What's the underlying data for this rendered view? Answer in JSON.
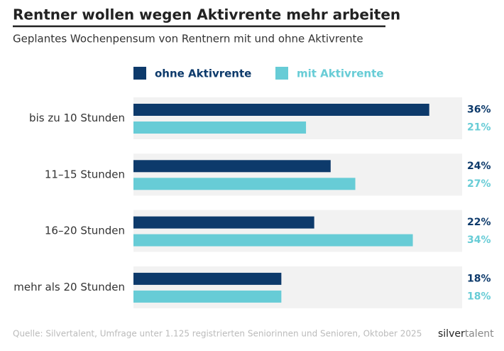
{
  "chart_data": {
    "type": "hbar",
    "title": "Rentner wollen wegen Aktivrente mehr arbeiten",
    "subtitle": "Geplantes Wochenpensum von Rentnern mit und ohne Aktivrente",
    "categories": [
      "bis zu 10 Stunden",
      "11–15 Stunden",
      "16–20 Stunden",
      "mehr als 20 Stunden"
    ],
    "series": [
      {
        "name": "ohne Aktivrente",
        "color": "#0d3a6b",
        "values": [
          36,
          24,
          22,
          18
        ],
        "value_labels": [
          "36%",
          "24%",
          "22%",
          "18%"
        ]
      },
      {
        "name": "mit Aktivrente",
        "color": "#67ccd6",
        "values": [
          21,
          27,
          34,
          18
        ],
        "value_labels": [
          "21%",
          "27%",
          "34%",
          "18%"
        ]
      }
    ],
    "xlim": [
      0,
      40
    ],
    "source": "Quelle: Silvertalent, Umfrage unter 1.125 registrierten Seniorinnen und Senioren, Oktober 2025",
    "logo": {
      "first": "silver",
      "second": "talent"
    }
  }
}
